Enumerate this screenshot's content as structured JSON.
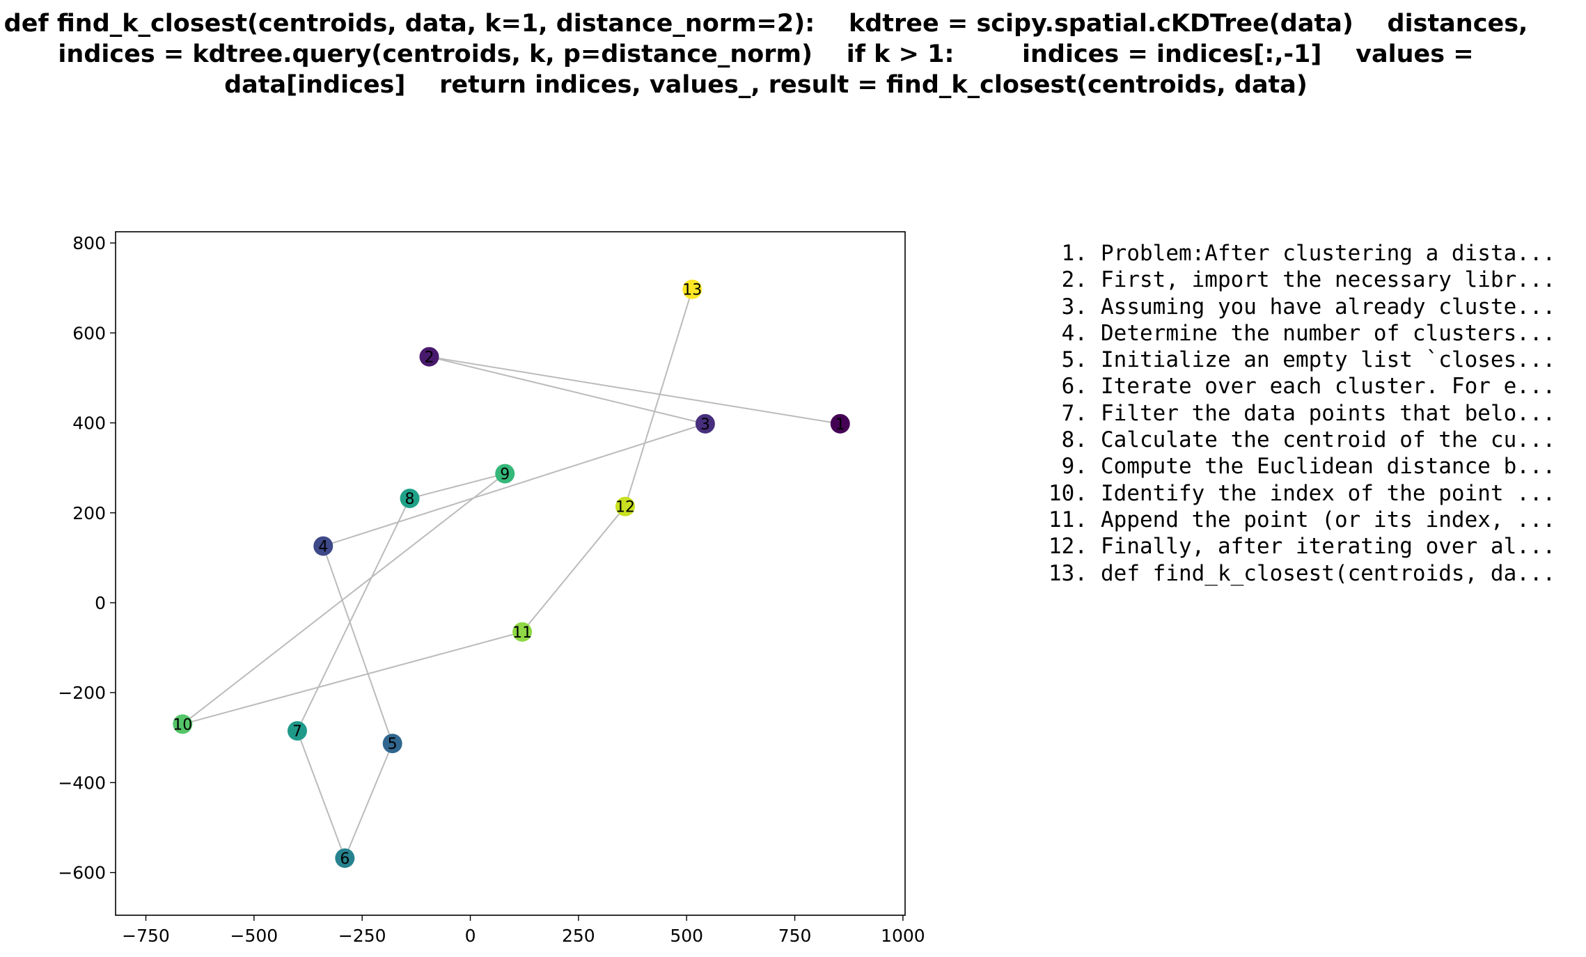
{
  "chart_data": {
    "type": "scatter",
    "title": "def find_k_closest(centroids, data, k=1, distance_norm=2):    kdtree = scipy.spatial.cKDTree(data)    distances, indices = kdtree.query(centroids, k, p=distance_norm)    if k > 1:        indices = indices[:,-1]    values = data[indices]    return indices, values_, result = find_k_closest(centroids, data)",
    "xlim": [
      -820,
      1005
    ],
    "ylim": [
      -695,
      825
    ],
    "x_ticks": [
      -750,
      -500,
      -250,
      0,
      250,
      500,
      750,
      1000
    ],
    "y_ticks": [
      800,
      600,
      400,
      200,
      0,
      -200,
      -400,
      -600
    ],
    "grid": false,
    "colormap": "viridis",
    "connecting_line_color": "#bbbbbb",
    "points": [
      {
        "label": "1",
        "x": 855,
        "y": 398,
        "color": "#440154"
      },
      {
        "label": "2",
        "x": -95,
        "y": 547,
        "color": "#481a6c"
      },
      {
        "label": "3",
        "x": 543,
        "y": 398,
        "color": "#472f7d"
      },
      {
        "label": "4",
        "x": -340,
        "y": 126,
        "color": "#3e4989"
      },
      {
        "label": "5",
        "x": -180,
        "y": -313,
        "color": "#31678e"
      },
      {
        "label": "6",
        "x": -290,
        "y": -568,
        "color": "#26828e"
      },
      {
        "label": "7",
        "x": -400,
        "y": -285,
        "color": "#1f9a8a"
      },
      {
        "label": "8",
        "x": -140,
        "y": 232,
        "color": "#1fa188"
      },
      {
        "label": "9",
        "x": 80,
        "y": 287,
        "color": "#35b779"
      },
      {
        "label": "10",
        "x": -665,
        "y": -270,
        "color": "#54c568"
      },
      {
        "label": "11",
        "x": 120,
        "y": -65,
        "color": "#8fd744"
      },
      {
        "label": "12",
        "x": 358,
        "y": 214,
        "color": "#c8e020"
      },
      {
        "label": "13",
        "x": 513,
        "y": 697,
        "color": "#fde725"
      }
    ],
    "path_order": [
      "1",
      "2",
      "3",
      "4",
      "5",
      "6",
      "7",
      "8",
      "9",
      "10",
      "11",
      "12",
      "13"
    ]
  },
  "steps": [
    {
      "num": "1.",
      "text": "Problem:After clustering a dista..."
    },
    {
      "num": "2.",
      "text": "First, import the necessary libr..."
    },
    {
      "num": "3.",
      "text": "Assuming you have already cluste..."
    },
    {
      "num": "4.",
      "text": "Determine the number of clusters..."
    },
    {
      "num": "5.",
      "text": "Initialize an empty list `closes..."
    },
    {
      "num": "6.",
      "text": "Iterate over each cluster. For e..."
    },
    {
      "num": "7.",
      "text": "Filter the data points that belo..."
    },
    {
      "num": "8.",
      "text": "Calculate the centroid of the cu..."
    },
    {
      "num": "9.",
      "text": "Compute the Euclidean distance b..."
    },
    {
      "num": "10.",
      "text": "Identify the index of the point ..."
    },
    {
      "num": "11.",
      "text": "Append the point (or its index, ..."
    },
    {
      "num": "12.",
      "text": "Finally, after iterating over al..."
    },
    {
      "num": "13.",
      "text": "def find_k_closest(centroids, da..."
    }
  ]
}
